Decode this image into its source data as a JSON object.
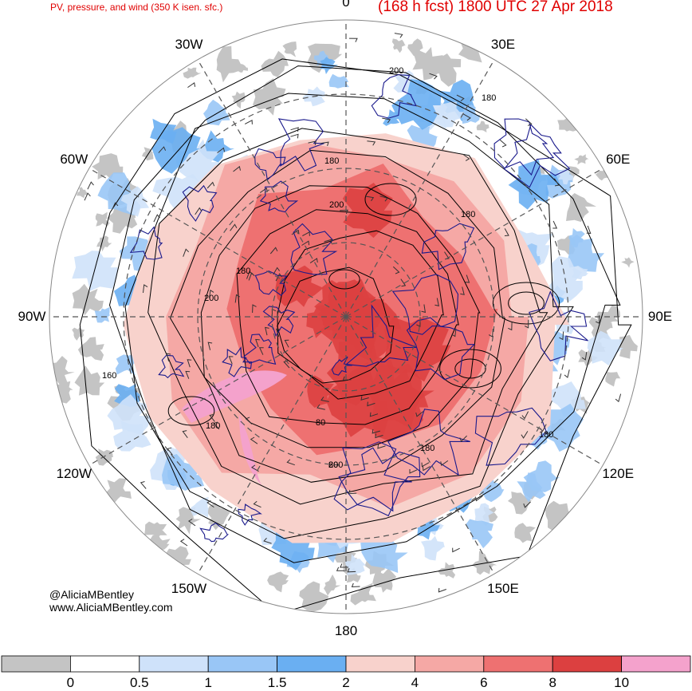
{
  "header": {
    "product_title": "PV, pressure, and wind (350 K isen. sfc.)",
    "forecast_title": "(168 h fcst) 1800 UTC 27 Apr 2018"
  },
  "credits": {
    "handle": "@AliciaMBentley",
    "website": "www.AliciaMBentley.com"
  },
  "colors": {
    "title_red": "#e00000",
    "coastline": "#1a1a8c",
    "contour": "#000000",
    "graticule": "#555555"
  },
  "chart_data": {
    "type": "heatmap",
    "projection": "north-polar-stereographic",
    "field": "PV",
    "longitude_labels": [
      {
        "lon": 90,
        "text": "90E"
      },
      {
        "lon": 60,
        "text": "60E"
      },
      {
        "lon": 30,
        "text": "30E"
      },
      {
        "lon": 0,
        "text": "0"
      },
      {
        "lon": -30,
        "text": "30W"
      },
      {
        "lon": -60,
        "text": "60W"
      },
      {
        "lon": -90,
        "text": "90W"
      },
      {
        "lon": -120,
        "text": "120W"
      },
      {
        "lon": -150,
        "text": "150W"
      },
      {
        "lon": 180,
        "text": "180"
      },
      {
        "lon": 150,
        "text": "150E"
      },
      {
        "lon": 120,
        "text": "120E"
      }
    ],
    "contour_labels": [
      "200",
      "180",
      "180",
      "200",
      "180",
      "180",
      "200",
      "160",
      "180",
      "180",
      "180",
      "80",
      "80",
      "200"
    ],
    "colorbar": {
      "ticks": [
        "0",
        "0.5",
        "1",
        "1.5",
        "2",
        "4",
        "6",
        "8",
        "10"
      ],
      "bins": [
        {
          "from": null,
          "to": 0,
          "color": "#c4c4c4"
        },
        {
          "from": 0,
          "to": 0.5,
          "color": "#ffffff"
        },
        {
          "from": 0.5,
          "to": 1,
          "color": "#cfe2fa"
        },
        {
          "from": 1,
          "to": 1.5,
          "color": "#99c6f6"
        },
        {
          "from": 1.5,
          "to": 2,
          "color": "#6aaff2"
        },
        {
          "from": 2,
          "to": 4,
          "color": "#f8d2cc"
        },
        {
          "from": 4,
          "to": 6,
          "color": "#f5a8a5"
        },
        {
          "from": 6,
          "to": 8,
          "color": "#ee7171"
        },
        {
          "from": 8,
          "to": 10,
          "color": "#dc4040"
        },
        {
          "from": 10,
          "to": null,
          "color": "#f4a2cc"
        }
      ]
    }
  }
}
